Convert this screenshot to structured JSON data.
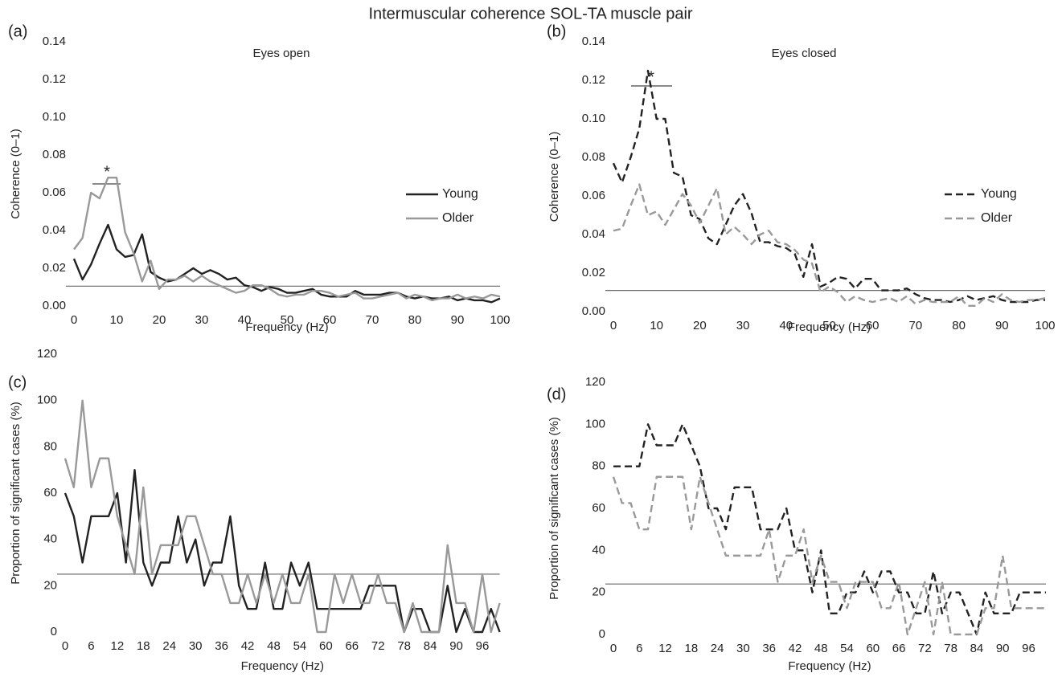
{
  "title": "Intermuscular coherence SOL-TA muscle pair",
  "chart_data": [
    {
      "type": "line",
      "panel": "(a)",
      "annotations": [
        "Eyes open",
        "*"
      ],
      "xlabel": "Frequency (Hz)",
      "ylabel": "Coherence (0–1)",
      "xlim": [
        0,
        100
      ],
      "xticks": [
        0,
        10,
        20,
        30,
        40,
        50,
        60,
        70,
        80,
        90,
        100
      ],
      "ylim": [
        0,
        0.14
      ],
      "yticks": [
        {
          "value": 0,
          "label": "0.00"
        },
        {
          "value": 0.02,
          "label": "0.02"
        },
        {
          "value": 0.04,
          "label": "0.04"
        },
        {
          "value": 0.06,
          "label": "0.06"
        },
        {
          "value": 0.08,
          "label": "0.08"
        },
        {
          "value": 0.1,
          "label": "0.10"
        },
        {
          "value": 0.12,
          "label": "0.12"
        },
        {
          "value": 0.14,
          "label": "0.14"
        }
      ],
      "reference_line": 0.0105,
      "legend": true,
      "line_style": "solid",
      "x": [
        0,
        2,
        4,
        6,
        8,
        10,
        12,
        14,
        16,
        18,
        20,
        22,
        24,
        26,
        28,
        30,
        32,
        34,
        36,
        38,
        40,
        42,
        44,
        46,
        48,
        50,
        52,
        54,
        56,
        58,
        60,
        62,
        64,
        66,
        68,
        70,
        72,
        74,
        76,
        78,
        80,
        82,
        84,
        86,
        88,
        90,
        92,
        94,
        96,
        98,
        100
      ],
      "series": [
        {
          "name": "Young",
          "color": "#222222",
          "values": [
            0.025,
            0.014,
            0.022,
            0.033,
            0.043,
            0.03,
            0.026,
            0.027,
            0.038,
            0.018,
            0.015,
            0.013,
            0.014,
            0.017,
            0.02,
            0.017,
            0.019,
            0.017,
            0.014,
            0.015,
            0.011,
            0.01,
            0.008,
            0.01,
            0.009,
            0.007,
            0.007,
            0.008,
            0.009,
            0.006,
            0.005,
            0.005,
            0.005,
            0.008,
            0.006,
            0.006,
            0.006,
            0.007,
            0.007,
            0.005,
            0.004,
            0.005,
            0.004,
            0.004,
            0.005,
            0.003,
            0.004,
            0.003,
            0.003,
            0.002,
            0.004
          ]
        },
        {
          "name": "Older",
          "color": "#999999",
          "values": [
            0.03,
            0.036,
            0.06,
            0.057,
            0.068,
            0.068,
            0.039,
            0.028,
            0.013,
            0.024,
            0.009,
            0.014,
            0.014,
            0.016,
            0.013,
            0.016,
            0.013,
            0.011,
            0.009,
            0.007,
            0.008,
            0.011,
            0.011,
            0.009,
            0.006,
            0.005,
            0.006,
            0.006,
            0.008,
            0.008,
            0.007,
            0.005,
            0.006,
            0.007,
            0.004,
            0.004,
            0.005,
            0.006,
            0.007,
            0.004,
            0.006,
            0.005,
            0.003,
            0.004,
            0.004,
            0.006,
            0.004,
            0.005,
            0.004,
            0.006,
            0.005
          ]
        }
      ]
    },
    {
      "type": "line",
      "panel": "(b)",
      "annotations": [
        "Eyes closed",
        "*"
      ],
      "xlabel": "Frequency (Hz)",
      "ylabel": "Coherence (0–1)",
      "xlim": [
        0,
        100
      ],
      "xticks": [
        0,
        10,
        20,
        30,
        40,
        50,
        60,
        70,
        80,
        90,
        100
      ],
      "ylim": [
        0,
        0.14
      ],
      "yticks": [
        {
          "value": 0,
          "label": "0.00"
        },
        {
          "value": 0.02,
          "label": "0.02"
        },
        {
          "value": 0.04,
          "label": "0.04"
        },
        {
          "value": 0.06,
          "label": "0.06"
        },
        {
          "value": 0.08,
          "label": "0.08"
        },
        {
          "value": 0.1,
          "label": "0.10"
        },
        {
          "value": 0.12,
          "label": "0.12"
        },
        {
          "value": 0.14,
          "label": "0.14"
        }
      ],
      "reference_line": 0.011,
      "legend": true,
      "line_style": "dashed",
      "x": [
        0,
        2,
        4,
        6,
        8,
        10,
        12,
        14,
        16,
        18,
        20,
        22,
        24,
        26,
        28,
        30,
        32,
        34,
        36,
        38,
        40,
        42,
        44,
        46,
        48,
        50,
        52,
        54,
        56,
        58,
        60,
        62,
        64,
        66,
        68,
        70,
        72,
        74,
        76,
        78,
        80,
        82,
        84,
        86,
        88,
        90,
        92,
        94,
        96,
        98,
        100
      ],
      "series": [
        {
          "name": "Young",
          "color": "#222222",
          "values": [
            0.077,
            0.067,
            0.08,
            0.095,
            0.125,
            0.1,
            0.1,
            0.072,
            0.07,
            0.05,
            0.048,
            0.038,
            0.035,
            0.045,
            0.055,
            0.061,
            0.051,
            0.036,
            0.036,
            0.034,
            0.033,
            0.03,
            0.018,
            0.035,
            0.013,
            0.015,
            0.018,
            0.017,
            0.012,
            0.017,
            0.017,
            0.011,
            0.011,
            0.011,
            0.012,
            0.009,
            0.007,
            0.006,
            0.006,
            0.005,
            0.006,
            0.008,
            0.006,
            0.007,
            0.008,
            0.006,
            0.005,
            0.005,
            0.005,
            0.006,
            0.006
          ]
        },
        {
          "name": "Older",
          "color": "#999999",
          "values": [
            0.042,
            0.043,
            0.055,
            0.066,
            0.05,
            0.052,
            0.045,
            0.053,
            0.061,
            0.055,
            0.046,
            0.055,
            0.064,
            0.04,
            0.044,
            0.04,
            0.035,
            0.04,
            0.042,
            0.036,
            0.035,
            0.032,
            0.027,
            0.025,
            0.01,
            0.013,
            0.01,
            0.005,
            0.008,
            0.006,
            0.005,
            0.006,
            0.007,
            0.005,
            0.008,
            0.004,
            0.006,
            0.005,
            0.005,
            0.005,
            0.008,
            0.003,
            0.003,
            0.007,
            0.005,
            0.009,
            0.006,
            0.005,
            0.006,
            0.006,
            0.007
          ]
        }
      ]
    },
    {
      "type": "line",
      "panel": "(c)",
      "xlabel": "Frequency (Hz)",
      "ylabel": "Proportion of significant cases (%)",
      "xlim": [
        0,
        100
      ],
      "xticks": [
        0,
        6,
        12,
        18,
        24,
        30,
        36,
        42,
        48,
        54,
        60,
        66,
        72,
        78,
        84,
        90,
        96
      ],
      "ylim": [
        0,
        120
      ],
      "yticks": [
        0,
        20,
        40,
        60,
        80,
        100,
        120
      ],
      "reference_line": 25,
      "legend": false,
      "line_style": "solid",
      "x": [
        0,
        2,
        4,
        6,
        8,
        10,
        12,
        14,
        16,
        18,
        20,
        22,
        24,
        26,
        28,
        30,
        32,
        34,
        36,
        38,
        40,
        42,
        44,
        46,
        48,
        50,
        52,
        54,
        56,
        58,
        60,
        62,
        64,
        66,
        68,
        70,
        72,
        74,
        76,
        78,
        80,
        82,
        84,
        86,
        88,
        90,
        92,
        94,
        96,
        98,
        100
      ],
      "series": [
        {
          "color": "#222222",
          "values": [
            60,
            50,
            30,
            50,
            50,
            50,
            60,
            30,
            70,
            30,
            20,
            30,
            30,
            50,
            30,
            40,
            20,
            30,
            30,
            50,
            20,
            10,
            10,
            30,
            10,
            10,
            30,
            20,
            30,
            10,
            10,
            10,
            10,
            10,
            10,
            20,
            20,
            20,
            20,
            0,
            10,
            10,
            0,
            0,
            20,
            0,
            10,
            0,
            0,
            10,
            0
          ]
        },
        {
          "color": "#999999",
          "values": [
            75,
            62.5,
            100,
            62.5,
            75,
            75,
            50,
            37.5,
            25,
            62.5,
            25,
            37.5,
            37.5,
            37.5,
            50,
            50,
            37.5,
            25,
            25,
            12.5,
            12.5,
            25,
            12.5,
            25,
            12.5,
            25,
            12.5,
            12.5,
            25,
            0,
            0,
            25,
            12.5,
            25,
            12.5,
            12.5,
            25,
            12.5,
            12.5,
            0,
            12.5,
            0,
            0,
            0,
            37.5,
            12.5,
            12.5,
            0,
            25,
            0,
            12.5
          ]
        }
      ]
    },
    {
      "type": "line",
      "panel": "(d)",
      "xlabel": "Frequency (Hz)",
      "ylabel": "Proportion of significant cases (%)",
      "xlim": [
        0,
        100
      ],
      "xticks": [
        0,
        6,
        12,
        18,
        24,
        30,
        36,
        42,
        48,
        54,
        60,
        66,
        72,
        78,
        84,
        90,
        96
      ],
      "ylim": [
        0,
        120
      ],
      "yticks": [
        0,
        20,
        40,
        60,
        80,
        100,
        120
      ],
      "reference_line": 24,
      "legend": false,
      "line_style": "dashed",
      "x": [
        0,
        2,
        4,
        6,
        8,
        10,
        12,
        14,
        16,
        18,
        20,
        22,
        24,
        26,
        28,
        30,
        32,
        34,
        36,
        38,
        40,
        42,
        44,
        46,
        48,
        50,
        52,
        54,
        56,
        58,
        60,
        62,
        64,
        66,
        68,
        70,
        72,
        74,
        76,
        78,
        80,
        82,
        84,
        86,
        88,
        90,
        92,
        94,
        96,
        98,
        100
      ],
      "series": [
        {
          "color": "#222222",
          "values": [
            80,
            80,
            80,
            80,
            100,
            90,
            90,
            90,
            100,
            90,
            80,
            60,
            60,
            50,
            70,
            70,
            70,
            50,
            50,
            50,
            60,
            40,
            40,
            20,
            40,
            10,
            10,
            20,
            20,
            30,
            20,
            30,
            30,
            20,
            20,
            10,
            10,
            30,
            10,
            20,
            20,
            10,
            0,
            20,
            10,
            10,
            10,
            20,
            20,
            20,
            20
          ]
        },
        {
          "color": "#999999",
          "values": [
            75,
            62.5,
            62.5,
            50,
            50,
            75,
            75,
            75,
            75,
            50,
            75,
            62.5,
            50,
            37.5,
            37.5,
            37.5,
            37.5,
            37.5,
            50,
            25,
            37.5,
            37.5,
            50,
            25,
            37.5,
            25,
            25,
            12.5,
            25,
            25,
            25,
            12.5,
            12.5,
            25,
            0,
            12.5,
            25,
            0,
            25,
            0,
            0,
            0,
            0,
            12.5,
            12.5,
            37.5,
            12.5,
            12.5,
            12.5,
            12.5,
            12.5
          ]
        }
      ]
    }
  ]
}
